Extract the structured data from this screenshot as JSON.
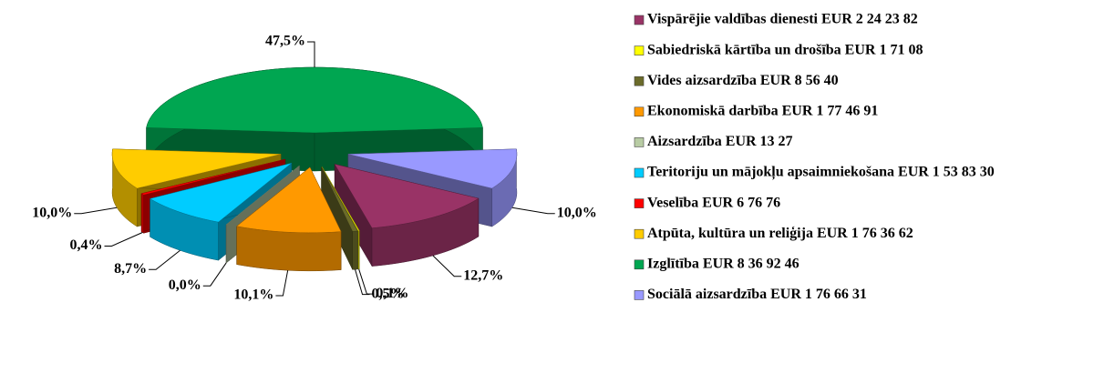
{
  "chart_data": {
    "type": "pie3d",
    "categories": [
      "Vispārējie valdības dienesti EUR 2 24 23 82",
      "Sabiedriskā kārtība un drošība EUR 1 71 08",
      "Vides aizsardzība EUR 8 56 40",
      "Ekonomiskā darbība EUR 1 77 46 91",
      "Aizsardzība EUR 13 27",
      "Teritoriju un mājokļu apsaimniekošana EUR 1 53 83 30",
      "Veselība EUR 6 76 76",
      "Atpūta, kultūra un reliģija EUR 1 76 36 62",
      "Izglītība EUR 8 36 92 46",
      "Sociālā aizsardzība EUR 1 76 66 31"
    ],
    "values": [
      12.7,
      0.1,
      0.5,
      10.1,
      0.0,
      8.7,
      0.4,
      10.0,
      47.5,
      10.0
    ],
    "value_labels": [
      "12,7%",
      "0,1%",
      "0,5%",
      "10,1%",
      "0,0%",
      "8,7%",
      "0,4%",
      "10,0%",
      "47,5%",
      "10,0%"
    ],
    "colors": [
      "#993366",
      "#ffff00",
      "#6b6b2a",
      "#ff9900",
      "#b8cca4",
      "#00ccff",
      "#ff0000",
      "#ffcc00",
      "#00a651",
      "#9999ff"
    ],
    "legend": "right"
  }
}
